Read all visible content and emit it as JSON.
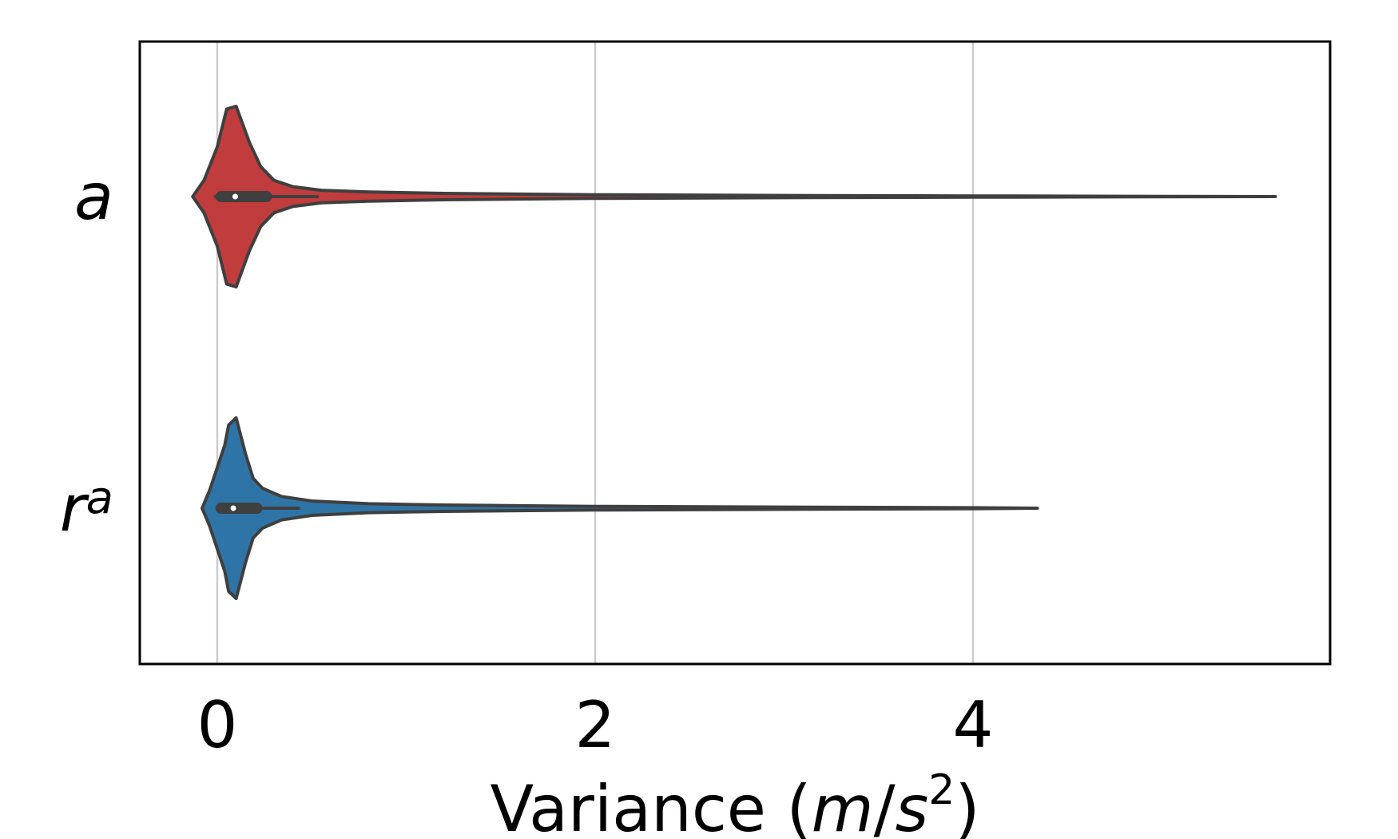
{
  "chart_data": {
    "type": "violin",
    "orientation": "horizontal",
    "xlabel": {
      "prefix": "Variance (",
      "unit_m": "m",
      "slash": "/",
      "unit_s": "s",
      "exponent": "2",
      "suffix": ")"
    },
    "xlim": [
      -0.41,
      5.89
    ],
    "xticks": [
      0,
      2,
      4
    ],
    "grid": "x",
    "categories": [
      {
        "label": "a",
        "superscript": "",
        "color": "#c13c3d"
      },
      {
        "label": "r",
        "superscript": "a",
        "color": "#2f74a6"
      }
    ],
    "series": [
      {
        "color": "#c13c3d",
        "min": -0.01,
        "q1": 0.02,
        "median": 0.095,
        "q3": 0.26,
        "whisker_high": 0.53,
        "max": 5.6,
        "density_profile": [
          [
            -0.13,
            0.0
          ],
          [
            -0.07,
            0.18
          ],
          [
            0.0,
            0.55
          ],
          [
            0.05,
            0.97
          ],
          [
            0.1,
            1.0
          ],
          [
            0.17,
            0.6
          ],
          [
            0.23,
            0.33
          ],
          [
            0.3,
            0.18
          ],
          [
            0.4,
            0.11
          ],
          [
            0.55,
            0.07
          ],
          [
            0.8,
            0.05
          ],
          [
            1.2,
            0.035
          ],
          [
            2.0,
            0.02
          ],
          [
            3.0,
            0.012
          ],
          [
            4.0,
            0.007
          ],
          [
            5.0,
            0.003
          ],
          [
            5.6,
            0.0
          ]
        ]
      },
      {
        "color": "#2f74a6",
        "min": 0.0,
        "q1": 0.02,
        "median": 0.085,
        "q3": 0.21,
        "whisker_high": 0.43,
        "max": 4.34,
        "density_profile": [
          [
            -0.08,
            0.0
          ],
          [
            -0.04,
            0.2
          ],
          [
            0.04,
            0.7
          ],
          [
            0.06,
            0.92
          ],
          [
            0.1,
            1.0
          ],
          [
            0.15,
            0.6
          ],
          [
            0.19,
            0.33
          ],
          [
            0.24,
            0.22
          ],
          [
            0.34,
            0.13
          ],
          [
            0.5,
            0.08
          ],
          [
            0.8,
            0.05
          ],
          [
            1.2,
            0.035
          ],
          [
            2.0,
            0.02
          ],
          [
            3.0,
            0.012
          ],
          [
            4.0,
            0.005
          ],
          [
            4.34,
            0.0
          ]
        ]
      }
    ]
  }
}
